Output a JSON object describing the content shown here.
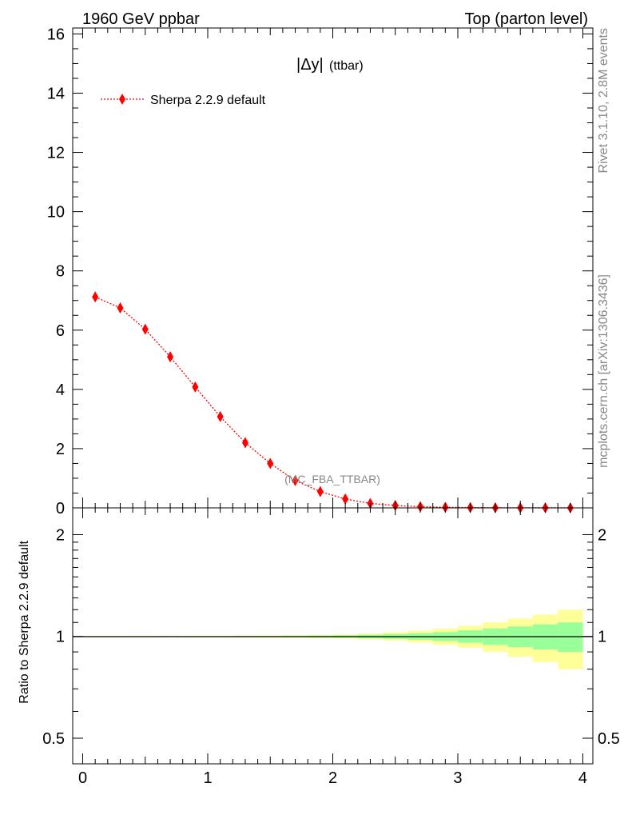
{
  "header": {
    "left_title": "1960 GeV ppbar",
    "right_title": "Top (parton level)"
  },
  "side_labels": {
    "top": "Rivet 3.1.10,  2.8M events",
    "bottom": "mcplots.cern.ch [arXiv:1306.3436]"
  },
  "plot_label": {
    "main": "|Δy|",
    "sub": "(ttbar)"
  },
  "watermark": "(MC_FBA_TTBAR)",
  "colors": {
    "series": "#ff0000",
    "ratio_line": "#000000",
    "band_inner": "#99ff99",
    "band_outer": "#ffff99"
  },
  "chart_data": {
    "type": "line",
    "main_panel": {
      "xlim": [
        -0.08,
        4.08
      ],
      "ylim": [
        0,
        16.2
      ],
      "y_ticks": [
        0,
        2,
        4,
        6,
        8,
        10,
        12,
        14,
        16
      ],
      "series": [
        {
          "name": "Sherpa 2.2.9 default",
          "marker": "diamond",
          "linestyle": "dotted",
          "x": [
            0.1,
            0.3,
            0.5,
            0.7,
            0.9,
            1.1,
            1.3,
            1.5,
            1.7,
            1.9,
            2.1,
            2.3,
            2.5,
            2.7,
            2.9,
            3.1,
            3.3,
            3.5,
            3.7,
            3.9
          ],
          "y": [
            7.12,
            6.75,
            6.03,
            5.1,
            4.08,
            3.08,
            2.2,
            1.5,
            0.92,
            0.55,
            0.3,
            0.15,
            0.08,
            0.04,
            0.02,
            0.01,
            0.005,
            0.003,
            0.002,
            0.001
          ]
        }
      ]
    },
    "ratio_panel": {
      "ylabel": "Ratio to Sherpa 2.2.9 default",
      "y_scale": "log",
      "ylim": [
        0.42,
        2.4
      ],
      "y_ticks": [
        0.5,
        1,
        2
      ],
      "reference": 1,
      "bin_edges": [
        0.0,
        0.2,
        0.4,
        0.6,
        0.8,
        1.0,
        1.2,
        1.4,
        1.6,
        1.8,
        2.0,
        2.2,
        2.4,
        2.6,
        2.8,
        3.0,
        3.2,
        3.4,
        3.6,
        3.8,
        4.0
      ],
      "band_inner_halfwidth": [
        0.002,
        0.002,
        0.002,
        0.003,
        0.003,
        0.003,
        0.004,
        0.004,
        0.005,
        0.006,
        0.008,
        0.012,
        0.016,
        0.022,
        0.03,
        0.042,
        0.056,
        0.07,
        0.085,
        0.1
      ],
      "band_outer_halfwidth": [
        0.003,
        0.003,
        0.004,
        0.004,
        0.005,
        0.005,
        0.006,
        0.007,
        0.008,
        0.01,
        0.014,
        0.02,
        0.028,
        0.04,
        0.055,
        0.075,
        0.1,
        0.13,
        0.16,
        0.2
      ]
    },
    "x_ticks": [
      0,
      1,
      2,
      3,
      4
    ],
    "grid": false,
    "legend_position": "top-left"
  }
}
